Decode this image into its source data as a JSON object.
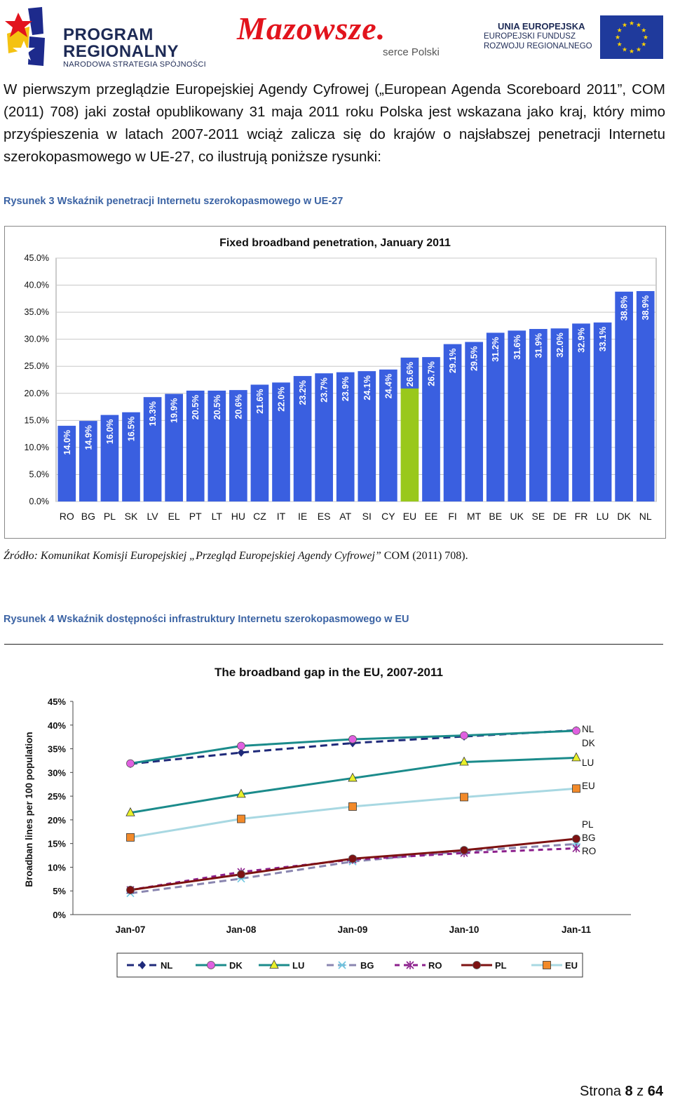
{
  "header": {
    "program_line1": "PROGRAM",
    "program_line2": "REGIONALNY",
    "program_line3": "NARODOWA STRATEGIA SPÓJNOŚCI",
    "mazowsze_word": "Mazowsze.",
    "mazowsze_sub": "serce Polski",
    "eu_line1": "UNIA EUROPEJSKA",
    "eu_line2": "EUROPEJSKI FUNDUSZ",
    "eu_line3": "ROZWOJU REGIONALNEGO"
  },
  "paragraph": "W pierwszym przeglądzie Europejskiej Agendy Cyfrowej („European Agenda Scoreboard 2011”, COM (2011) 708) jaki został opublikowany 31 maja 2011 roku Polska jest wskazana jako kraj, który mimo przyśpieszenia w latach 2007-2011 wciąż zalicza się do krajów o najsłabszej penetracji Internetu szerokopasmowego w UE-27, co ilustrują poniższe rysunki:",
  "caption1": "Rysunek 3 Wskaźnik penetracji Internetu szerokopasmowego w UE-27",
  "source_italic": "Źródło: Komunikat Komisji Europejskiej „Przegląd Europejskiej Agendy Cyfrowej”",
  "source_plain": " COM (2011) 708).",
  "caption2": "Rysunek 4 Wskaźnik dostępności infrastruktury Internetu szerokopasmowego w EU",
  "footer": {
    "prefix": "Strona ",
    "page": "8",
    "mid": " z ",
    "total": "64"
  },
  "chart_data": [
    {
      "type": "bar",
      "title": "Fixed broadband penetration, January 2011",
      "categories": [
        "RO",
        "BG",
        "PL",
        "SK",
        "LV",
        "EL",
        "PT",
        "LT",
        "HU",
        "CZ",
        "IT",
        "IE",
        "ES",
        "AT",
        "SI",
        "CY",
        "EU",
        "EE",
        "FI",
        "MT",
        "BE",
        "UK",
        "SE",
        "DE",
        "FR",
        "LU",
        "DK",
        "NL"
      ],
      "values": [
        14.0,
        14.9,
        16.0,
        16.5,
        19.3,
        19.9,
        20.5,
        20.5,
        20.6,
        21.6,
        22.0,
        23.2,
        23.7,
        23.9,
        24.1,
        24.4,
        26.6,
        26.7,
        29.1,
        29.5,
        31.2,
        31.6,
        31.9,
        32.0,
        32.9,
        33.1,
        38.8,
        38.9
      ],
      "labels": [
        "14.0%",
        "14.9%",
        "16.0%",
        "16.5%",
        "19.3%",
        "19.9%",
        "20.5%",
        "20.5%",
        "20.6%",
        "21.6%",
        "22.0%",
        "23.2%",
        "23.7%",
        "23.9%",
        "24.1%",
        "24.4%",
        "26.6%",
        "26.7%",
        "29.1%",
        "29.5%",
        "31.2%",
        "31.6%",
        "31.9%",
        "32.0%",
        "32.9%",
        "33.1%",
        "38.8%",
        "38.9%"
      ],
      "highlight": "EU",
      "ylim": [
        0,
        45
      ],
      "yticks": [
        "0.0%",
        "5.0%",
        "10.0%",
        "15.0%",
        "20.0%",
        "25.0%",
        "30.0%",
        "35.0%",
        "40.0%",
        "45.0%"
      ],
      "colors": {
        "bar": "#3a5fe0",
        "highlight_bar": "#99c81c",
        "highlight_top": "#3a5fe0"
      },
      "grid": true
    },
    {
      "type": "line",
      "title": "The broadband gap in the EU, 2007-2011",
      "ylabel": "Broadban lines per 100 population",
      "x": [
        "Jan-07",
        "Jan-08",
        "Jan-09",
        "Jan-10",
        "Jan-11"
      ],
      "ylim": [
        0,
        45
      ],
      "yticks": [
        "0%",
        "5%",
        "10%",
        "15%",
        "20%",
        "25%",
        "30%",
        "35%",
        "40%",
        "45%"
      ],
      "series": [
        {
          "name": "NL",
          "values": [
            31.8,
            34.2,
            36.2,
            37.6,
            38.9
          ],
          "color": "#1f2a7a",
          "dash": "10,6",
          "marker": "diamond"
        },
        {
          "name": "DK",
          "values": [
            31.9,
            35.6,
            37.0,
            37.8,
            38.8
          ],
          "color": "#1b8b8b",
          "dash": "",
          "marker": "circle",
          "marker_color": "#e060e0"
        },
        {
          "name": "LU",
          "values": [
            21.5,
            25.4,
            28.8,
            32.2,
            33.1
          ],
          "color": "#1b8b8b",
          "dash": "",
          "marker": "triangle",
          "marker_color": "#e8f02a"
        },
        {
          "name": "BG",
          "values": [
            4.5,
            7.6,
            11.2,
            13.4,
            14.9
          ],
          "color": "#8a86b0",
          "dash": "10,6",
          "marker": "star",
          "marker_color": "#6fc6e0"
        },
        {
          "name": "RO",
          "values": [
            5.2,
            9.0,
            11.6,
            13.0,
            14.0
          ],
          "color": "#8c1f8c",
          "dash": "7,6",
          "marker": "x"
        },
        {
          "name": "PL",
          "values": [
            5.2,
            8.5,
            11.8,
            13.6,
            16.0
          ],
          "color": "#7d1212",
          "dash": "",
          "marker": "circle",
          "marker_color": "#7d1212"
        },
        {
          "name": "EU",
          "values": [
            16.3,
            20.2,
            22.8,
            24.8,
            26.6
          ],
          "color": "#a8d8e2",
          "dash": "",
          "marker": "square",
          "marker_color": "#f28a2a"
        }
      ],
      "end_labels": [
        "NL",
        "DK",
        "LU",
        "EU",
        "PL",
        "BG",
        "RO"
      ],
      "legend": "bottom",
      "grid": false
    }
  ]
}
